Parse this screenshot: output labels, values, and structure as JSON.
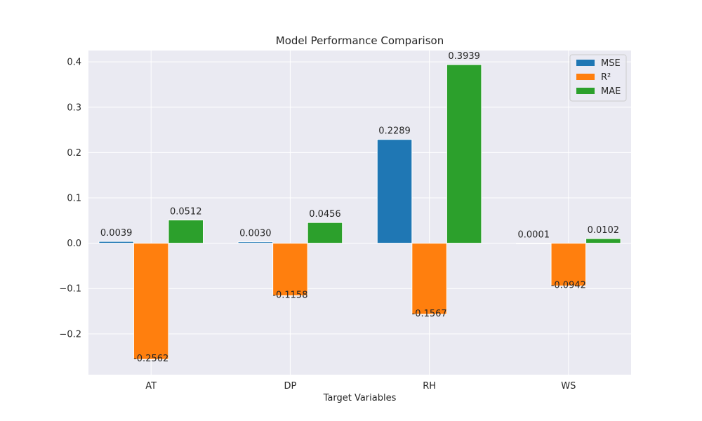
{
  "chart_data": {
    "type": "bar",
    "title": "Model Performance Comparison",
    "xlabel": "Target Variables",
    "ylabel": "",
    "categories": [
      "AT",
      "DP",
      "RH",
      "WS"
    ],
    "series": [
      {
        "name": "MSE",
        "color": "#1f77b4",
        "values": [
          0.0039,
          0.003,
          0.2289,
          0.0001
        ],
        "labels": [
          "0.0039",
          "0.0030",
          "0.2289",
          "0.0001"
        ]
      },
      {
        "name": "R²",
        "color": "#ff7f0e",
        "values": [
          -0.2562,
          -0.1158,
          -0.1567,
          -0.0942
        ],
        "labels": [
          "-0.2562",
          "-0.1158",
          "-0.1567",
          "-0.0942"
        ]
      },
      {
        "name": "MAE",
        "color": "#2ca02c",
        "values": [
          0.0512,
          0.0456,
          0.3939,
          0.0102
        ],
        "labels": [
          "0.0512",
          "0.0456",
          "0.3939",
          "0.0102"
        ]
      }
    ],
    "ylim": [
      -0.29,
      0.425
    ],
    "yticks": [
      -0.2,
      -0.1,
      0.0,
      0.1,
      0.2,
      0.3,
      0.4
    ],
    "ytick_labels": [
      "−0.2",
      "−0.1",
      "0.0",
      "0.1",
      "0.2",
      "0.3",
      "0.4"
    ],
    "grid": true,
    "legend_position": "top-right",
    "background": "#eaeaf2"
  }
}
